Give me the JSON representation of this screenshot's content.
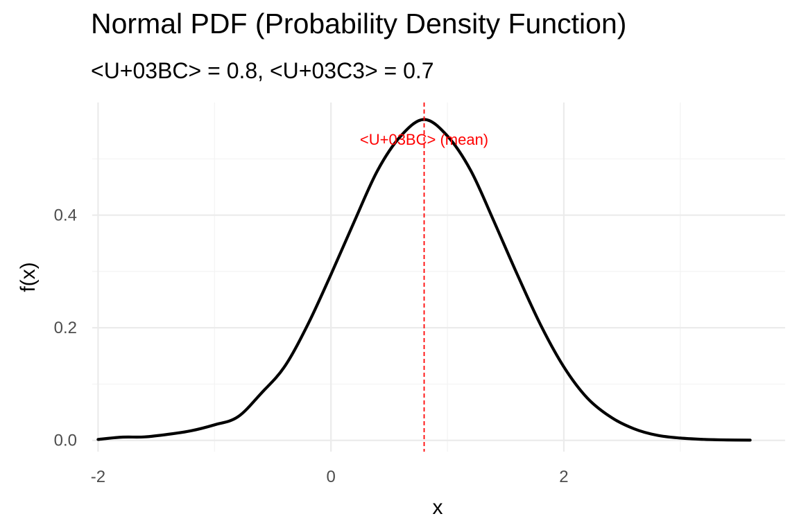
{
  "chart_data": {
    "type": "line",
    "title": "Normal PDF (Probability Density Function)",
    "subtitle": "<U+03BC> = 0.8,  <U+03C3> = 0.7",
    "xlabel": "x",
    "ylabel": "f(x)",
    "xlim": [
      -2.05,
      3.9
    ],
    "ylim": [
      -0.02,
      0.6
    ],
    "x_ticks": [
      -2,
      0,
      2
    ],
    "x_tick_labels": [
      "-2",
      "0",
      "2"
    ],
    "y_ticks": [
      0.0,
      0.2,
      0.4
    ],
    "y_tick_labels": [
      "0.0",
      "0.2",
      "0.4"
    ],
    "grid": true,
    "series": [
      {
        "color": "#000000",
        "x": [
          -2.0,
          -1.8,
          -1.6,
          -1.4,
          -1.2,
          -1.0,
          -0.8,
          -0.6,
          -0.4,
          -0.2,
          0.0,
          0.2,
          0.4,
          0.6,
          0.8,
          1.0,
          1.2,
          1.4,
          1.6,
          1.8,
          2.0,
          2.2,
          2.4,
          2.6,
          2.8,
          3.0,
          3.2,
          3.4,
          3.6
        ],
        "y": [
          0.0017,
          0.0057,
          0.0062,
          0.0107,
          0.0171,
          0.0276,
          0.0417,
          0.0835,
          0.1304,
          0.2052,
          0.2947,
          0.3886,
          0.4793,
          0.5406,
          0.5699,
          0.5406,
          0.4793,
          0.3886,
          0.2947,
          0.2052,
          0.1304,
          0.0755,
          0.0417,
          0.0208,
          0.0091,
          0.0041,
          0.0018,
          0.0008,
          0.0004
        ]
      }
    ],
    "vline": {
      "x": 0.8,
      "color": "#ff0000",
      "style": "dashed"
    },
    "annotation": {
      "text": "<U+03BC> (mean)",
      "x": 0.8,
      "y": 0.535,
      "color": "#ff0000"
    }
  }
}
